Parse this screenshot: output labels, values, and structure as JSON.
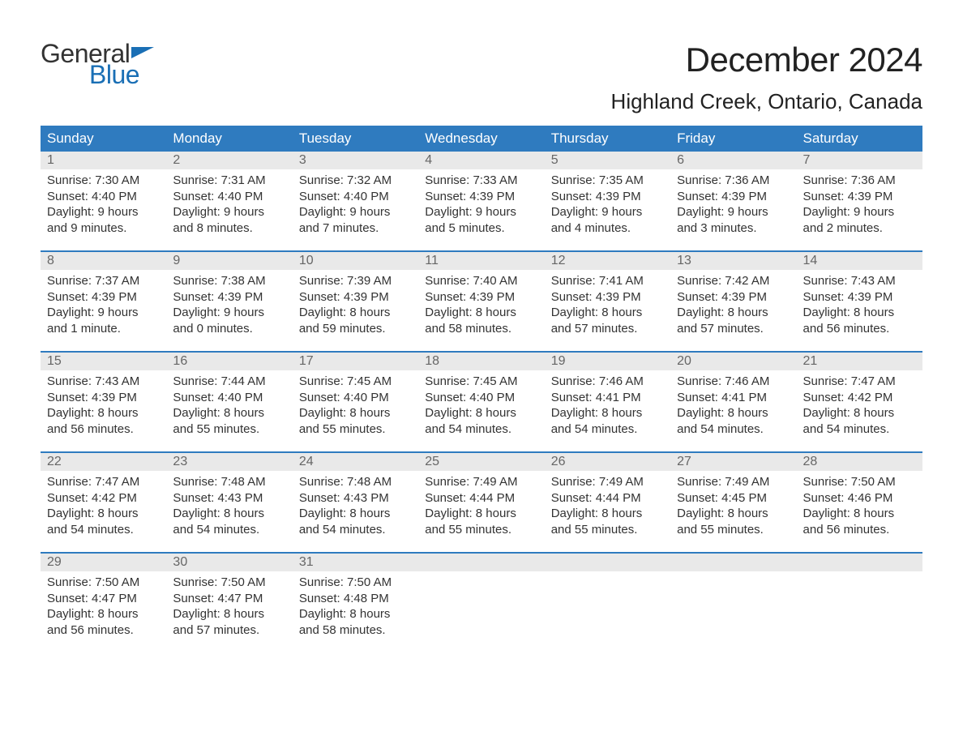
{
  "logo": {
    "text1": "General",
    "text2": "Blue",
    "flag_color": "#1a6fb5",
    "text1_color": "#333333",
    "text2_color": "#1a6fb5"
  },
  "title": "December 2024",
  "location": "Highland Creek, Ontario, Canada",
  "colors": {
    "header_bg": "#2f7bbf",
    "header_text": "#ffffff",
    "daynum_bg": "#e9e9e9",
    "daynum_text": "#666666",
    "row_divider": "#2f7bbf",
    "body_text": "#333333",
    "background": "#ffffff"
  },
  "fonts": {
    "title_size": 42,
    "location_size": 26,
    "header_size": 17,
    "daynum_size": 16,
    "cell_size": 15
  },
  "weekdays": [
    "Sunday",
    "Monday",
    "Tuesday",
    "Wednesday",
    "Thursday",
    "Friday",
    "Saturday"
  ],
  "weeks": [
    [
      {
        "day": "1",
        "sunrise": "Sunrise: 7:30 AM",
        "sunset": "Sunset: 4:40 PM",
        "dl1": "Daylight: 9 hours",
        "dl2": "and 9 minutes."
      },
      {
        "day": "2",
        "sunrise": "Sunrise: 7:31 AM",
        "sunset": "Sunset: 4:40 PM",
        "dl1": "Daylight: 9 hours",
        "dl2": "and 8 minutes."
      },
      {
        "day": "3",
        "sunrise": "Sunrise: 7:32 AM",
        "sunset": "Sunset: 4:40 PM",
        "dl1": "Daylight: 9 hours",
        "dl2": "and 7 minutes."
      },
      {
        "day": "4",
        "sunrise": "Sunrise: 7:33 AM",
        "sunset": "Sunset: 4:39 PM",
        "dl1": "Daylight: 9 hours",
        "dl2": "and 5 minutes."
      },
      {
        "day": "5",
        "sunrise": "Sunrise: 7:35 AM",
        "sunset": "Sunset: 4:39 PM",
        "dl1": "Daylight: 9 hours",
        "dl2": "and 4 minutes."
      },
      {
        "day": "6",
        "sunrise": "Sunrise: 7:36 AM",
        "sunset": "Sunset: 4:39 PM",
        "dl1": "Daylight: 9 hours",
        "dl2": "and 3 minutes."
      },
      {
        "day": "7",
        "sunrise": "Sunrise: 7:36 AM",
        "sunset": "Sunset: 4:39 PM",
        "dl1": "Daylight: 9 hours",
        "dl2": "and 2 minutes."
      }
    ],
    [
      {
        "day": "8",
        "sunrise": "Sunrise: 7:37 AM",
        "sunset": "Sunset: 4:39 PM",
        "dl1": "Daylight: 9 hours",
        "dl2": "and 1 minute."
      },
      {
        "day": "9",
        "sunrise": "Sunrise: 7:38 AM",
        "sunset": "Sunset: 4:39 PM",
        "dl1": "Daylight: 9 hours",
        "dl2": "and 0 minutes."
      },
      {
        "day": "10",
        "sunrise": "Sunrise: 7:39 AM",
        "sunset": "Sunset: 4:39 PM",
        "dl1": "Daylight: 8 hours",
        "dl2": "and 59 minutes."
      },
      {
        "day": "11",
        "sunrise": "Sunrise: 7:40 AM",
        "sunset": "Sunset: 4:39 PM",
        "dl1": "Daylight: 8 hours",
        "dl2": "and 58 minutes."
      },
      {
        "day": "12",
        "sunrise": "Sunrise: 7:41 AM",
        "sunset": "Sunset: 4:39 PM",
        "dl1": "Daylight: 8 hours",
        "dl2": "and 57 minutes."
      },
      {
        "day": "13",
        "sunrise": "Sunrise: 7:42 AM",
        "sunset": "Sunset: 4:39 PM",
        "dl1": "Daylight: 8 hours",
        "dl2": "and 57 minutes."
      },
      {
        "day": "14",
        "sunrise": "Sunrise: 7:43 AM",
        "sunset": "Sunset: 4:39 PM",
        "dl1": "Daylight: 8 hours",
        "dl2": "and 56 minutes."
      }
    ],
    [
      {
        "day": "15",
        "sunrise": "Sunrise: 7:43 AM",
        "sunset": "Sunset: 4:39 PM",
        "dl1": "Daylight: 8 hours",
        "dl2": "and 56 minutes."
      },
      {
        "day": "16",
        "sunrise": "Sunrise: 7:44 AM",
        "sunset": "Sunset: 4:40 PM",
        "dl1": "Daylight: 8 hours",
        "dl2": "and 55 minutes."
      },
      {
        "day": "17",
        "sunrise": "Sunrise: 7:45 AM",
        "sunset": "Sunset: 4:40 PM",
        "dl1": "Daylight: 8 hours",
        "dl2": "and 55 minutes."
      },
      {
        "day": "18",
        "sunrise": "Sunrise: 7:45 AM",
        "sunset": "Sunset: 4:40 PM",
        "dl1": "Daylight: 8 hours",
        "dl2": "and 54 minutes."
      },
      {
        "day": "19",
        "sunrise": "Sunrise: 7:46 AM",
        "sunset": "Sunset: 4:41 PM",
        "dl1": "Daylight: 8 hours",
        "dl2": "and 54 minutes."
      },
      {
        "day": "20",
        "sunrise": "Sunrise: 7:46 AM",
        "sunset": "Sunset: 4:41 PM",
        "dl1": "Daylight: 8 hours",
        "dl2": "and 54 minutes."
      },
      {
        "day": "21",
        "sunrise": "Sunrise: 7:47 AM",
        "sunset": "Sunset: 4:42 PM",
        "dl1": "Daylight: 8 hours",
        "dl2": "and 54 minutes."
      }
    ],
    [
      {
        "day": "22",
        "sunrise": "Sunrise: 7:47 AM",
        "sunset": "Sunset: 4:42 PM",
        "dl1": "Daylight: 8 hours",
        "dl2": "and 54 minutes."
      },
      {
        "day": "23",
        "sunrise": "Sunrise: 7:48 AM",
        "sunset": "Sunset: 4:43 PM",
        "dl1": "Daylight: 8 hours",
        "dl2": "and 54 minutes."
      },
      {
        "day": "24",
        "sunrise": "Sunrise: 7:48 AM",
        "sunset": "Sunset: 4:43 PM",
        "dl1": "Daylight: 8 hours",
        "dl2": "and 54 minutes."
      },
      {
        "day": "25",
        "sunrise": "Sunrise: 7:49 AM",
        "sunset": "Sunset: 4:44 PM",
        "dl1": "Daylight: 8 hours",
        "dl2": "and 55 minutes."
      },
      {
        "day": "26",
        "sunrise": "Sunrise: 7:49 AM",
        "sunset": "Sunset: 4:44 PM",
        "dl1": "Daylight: 8 hours",
        "dl2": "and 55 minutes."
      },
      {
        "day": "27",
        "sunrise": "Sunrise: 7:49 AM",
        "sunset": "Sunset: 4:45 PM",
        "dl1": "Daylight: 8 hours",
        "dl2": "and 55 minutes."
      },
      {
        "day": "28",
        "sunrise": "Sunrise: 7:50 AM",
        "sunset": "Sunset: 4:46 PM",
        "dl1": "Daylight: 8 hours",
        "dl2": "and 56 minutes."
      }
    ],
    [
      {
        "day": "29",
        "sunrise": "Sunrise: 7:50 AM",
        "sunset": "Sunset: 4:47 PM",
        "dl1": "Daylight: 8 hours",
        "dl2": "and 56 minutes."
      },
      {
        "day": "30",
        "sunrise": "Sunrise: 7:50 AM",
        "sunset": "Sunset: 4:47 PM",
        "dl1": "Daylight: 8 hours",
        "dl2": "and 57 minutes."
      },
      {
        "day": "31",
        "sunrise": "Sunrise: 7:50 AM",
        "sunset": "Sunset: 4:48 PM",
        "dl1": "Daylight: 8 hours",
        "dl2": "and 58 minutes."
      },
      null,
      null,
      null,
      null
    ]
  ]
}
